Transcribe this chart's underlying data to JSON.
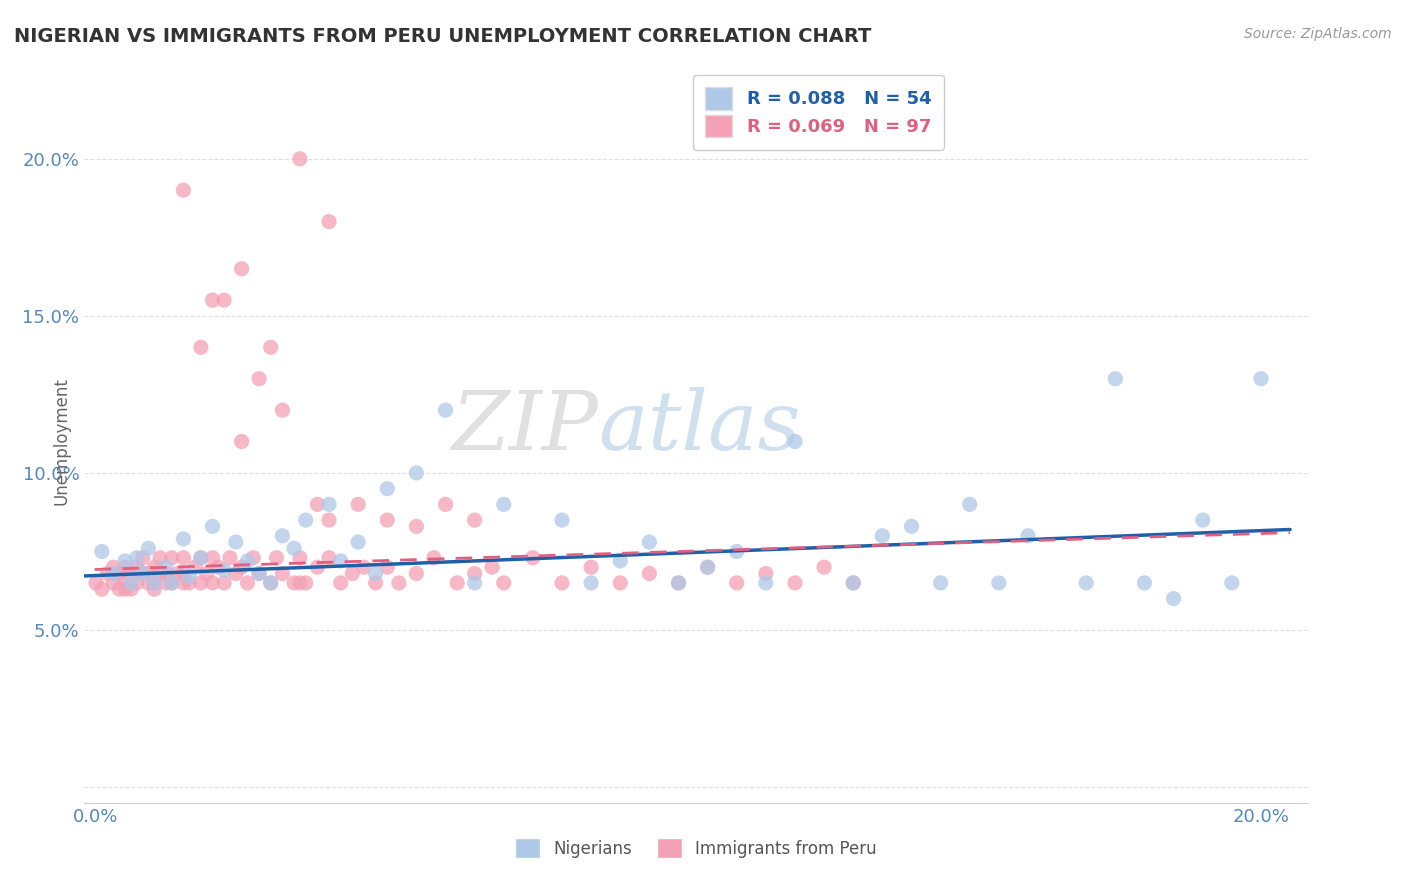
{
  "title": "NIGERIAN VS IMMIGRANTS FROM PERU UNEMPLOYMENT CORRELATION CHART",
  "source": "Source: ZipAtlas.com",
  "ylabel": "Unemployment",
  "xlim": [
    0.0,
    0.205
  ],
  "ylim": [
    -0.005,
    0.225
  ],
  "yticks": [
    0.0,
    0.05,
    0.1,
    0.15,
    0.2
  ],
  "ytick_labels": [
    "",
    "5.0%",
    "10.0%",
    "15.0%",
    "20.0%"
  ],
  "xticks": [
    0.0,
    0.2
  ],
  "xtick_labels": [
    "0.0%",
    "20.0%"
  ],
  "legend_r_blue": "R = 0.088",
  "legend_n_blue": "N = 54",
  "legend_r_pink": "R = 0.069",
  "legend_n_pink": "N = 97",
  "legend_label_blue": "Nigerians",
  "legend_label_pink": "Immigrants from Peru",
  "watermark": "ZIPatlas",
  "blue_color": "#aec8e8",
  "pink_color": "#f4a0b5",
  "blue_line_color": "#2060a8",
  "pink_line_color": "#e06080",
  "background_color": "#ffffff",
  "grid_color": "#dddddd",
  "title_color": "#333333",
  "tick_color": "#5588bb",
  "nig_line_y0": 0.067,
  "nig_line_y1": 0.082,
  "peru_line_y0": 0.069,
  "peru_line_y1": 0.081,
  "nigerian_x": [
    0.001,
    0.003,
    0.005,
    0.006,
    0.007,
    0.008,
    0.009,
    0.01,
    0.012,
    0.013,
    0.015,
    0.016,
    0.018,
    0.02,
    0.022,
    0.024,
    0.026,
    0.028,
    0.03,
    0.032,
    0.034,
    0.036,
    0.04,
    0.042,
    0.045,
    0.048,
    0.05,
    0.055,
    0.06,
    0.065,
    0.07,
    0.08,
    0.085,
    0.09,
    0.095,
    0.1,
    0.105,
    0.11,
    0.115,
    0.12,
    0.13,
    0.135,
    0.14,
    0.145,
    0.15,
    0.155,
    0.16,
    0.17,
    0.175,
    0.18,
    0.185,
    0.19,
    0.195,
    0.2
  ],
  "nigerian_y": [
    0.075,
    0.068,
    0.072,
    0.065,
    0.073,
    0.068,
    0.076,
    0.065,
    0.07,
    0.065,
    0.079,
    0.067,
    0.073,
    0.083,
    0.069,
    0.078,
    0.072,
    0.068,
    0.065,
    0.08,
    0.076,
    0.085,
    0.09,
    0.072,
    0.078,
    0.068,
    0.095,
    0.1,
    0.12,
    0.065,
    0.09,
    0.085,
    0.065,
    0.072,
    0.078,
    0.065,
    0.07,
    0.075,
    0.065,
    0.11,
    0.065,
    0.08,
    0.083,
    0.065,
    0.09,
    0.065,
    0.08,
    0.065,
    0.13,
    0.065,
    0.06,
    0.085,
    0.065,
    0.13
  ],
  "peru_x": [
    0.0,
    0.001,
    0.002,
    0.003,
    0.003,
    0.004,
    0.004,
    0.005,
    0.005,
    0.005,
    0.006,
    0.006,
    0.007,
    0.007,
    0.008,
    0.008,
    0.009,
    0.009,
    0.01,
    0.01,
    0.01,
    0.011,
    0.011,
    0.012,
    0.012,
    0.013,
    0.013,
    0.014,
    0.015,
    0.015,
    0.015,
    0.016,
    0.017,
    0.018,
    0.018,
    0.019,
    0.02,
    0.02,
    0.021,
    0.022,
    0.023,
    0.024,
    0.025,
    0.026,
    0.027,
    0.028,
    0.03,
    0.031,
    0.032,
    0.034,
    0.035,
    0.036,
    0.038,
    0.04,
    0.042,
    0.044,
    0.046,
    0.048,
    0.05,
    0.052,
    0.055,
    0.058,
    0.062,
    0.065,
    0.068,
    0.07,
    0.075,
    0.08,
    0.085,
    0.09,
    0.095,
    0.1,
    0.105,
    0.11,
    0.115,
    0.12,
    0.125,
    0.13,
    0.04,
    0.045,
    0.05,
    0.055,
    0.06,
    0.065,
    0.035,
    0.025,
    0.018,
    0.022,
    0.028,
    0.032,
    0.038,
    0.015,
    0.02,
    0.025,
    0.03,
    0.035,
    0.04
  ],
  "peru_y": [
    0.065,
    0.063,
    0.068,
    0.065,
    0.07,
    0.063,
    0.068,
    0.065,
    0.07,
    0.063,
    0.068,
    0.063,
    0.07,
    0.065,
    0.068,
    0.073,
    0.065,
    0.068,
    0.065,
    0.07,
    0.063,
    0.068,
    0.073,
    0.065,
    0.068,
    0.073,
    0.065,
    0.068,
    0.065,
    0.073,
    0.068,
    0.065,
    0.07,
    0.065,
    0.073,
    0.068,
    0.065,
    0.073,
    0.07,
    0.065,
    0.073,
    0.068,
    0.07,
    0.065,
    0.073,
    0.068,
    0.065,
    0.073,
    0.068,
    0.065,
    0.073,
    0.065,
    0.07,
    0.073,
    0.065,
    0.068,
    0.07,
    0.065,
    0.07,
    0.065,
    0.068,
    0.073,
    0.065,
    0.068,
    0.07,
    0.065,
    0.073,
    0.065,
    0.07,
    0.065,
    0.068,
    0.065,
    0.07,
    0.065,
    0.068,
    0.065,
    0.07,
    0.065,
    0.085,
    0.09,
    0.085,
    0.083,
    0.09,
    0.085,
    0.065,
    0.11,
    0.14,
    0.155,
    0.13,
    0.12,
    0.09,
    0.19,
    0.155,
    0.165,
    0.14,
    0.2,
    0.18
  ]
}
